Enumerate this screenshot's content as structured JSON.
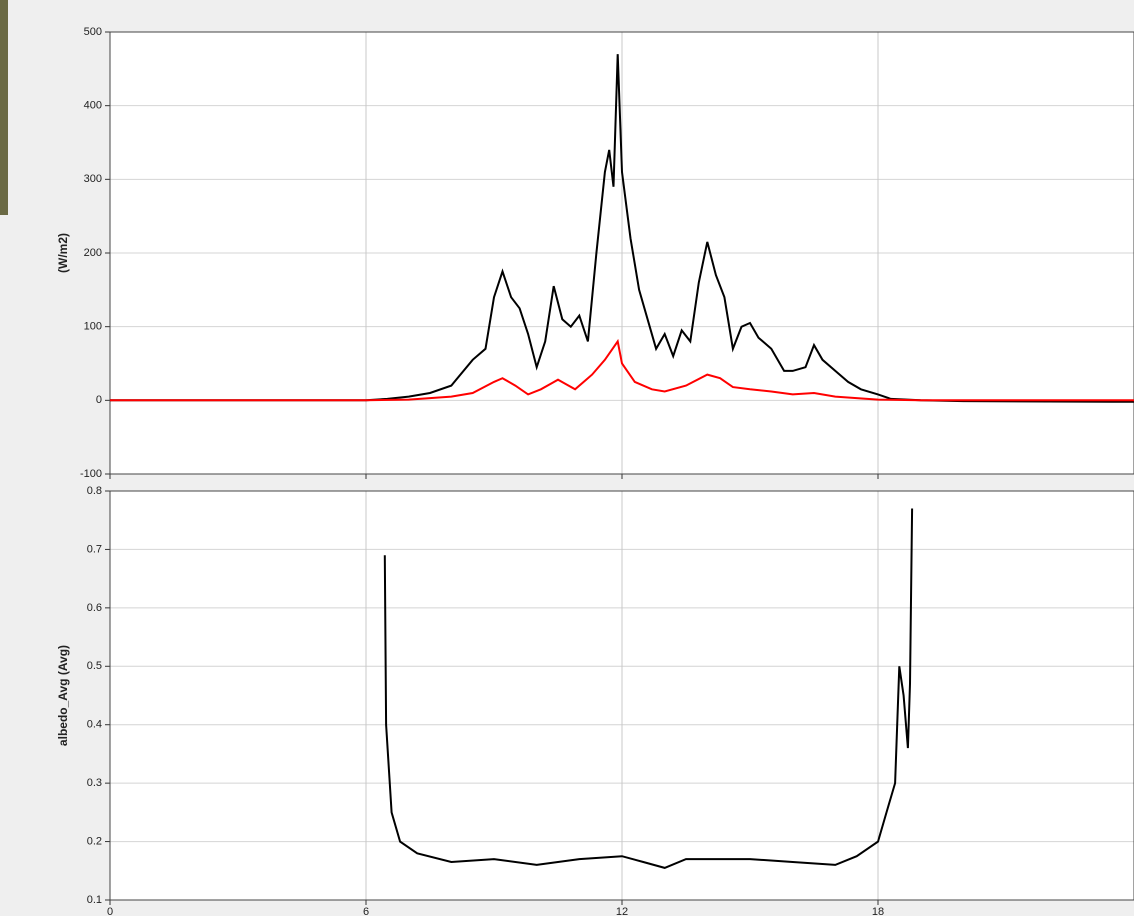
{
  "chart_data": [
    {
      "type": "line",
      "y_label": "(W/m2)",
      "xlim": [
        0,
        24
      ],
      "xticks": [
        0,
        6,
        12,
        18
      ],
      "ylim": [
        -100,
        500
      ],
      "yticks": [
        -100,
        0,
        100,
        200,
        300,
        400,
        500
      ],
      "grid": true,
      "series": [
        {
          "color": "#000000",
          "x": [
            0,
            6,
            6.5,
            7,
            7.5,
            8,
            8.5,
            8.8,
            9,
            9.2,
            9.4,
            9.6,
            9.8,
            10,
            10.2,
            10.4,
            10.6,
            10.8,
            11,
            11.2,
            11.4,
            11.6,
            11.7,
            11.8,
            11.9,
            12,
            12.2,
            12.4,
            12.6,
            12.8,
            13,
            13.2,
            13.4,
            13.6,
            13.8,
            14,
            14.2,
            14.4,
            14.6,
            14.8,
            15,
            15.2,
            15.5,
            15.8,
            16,
            16.3,
            16.5,
            16.7,
            17,
            17.3,
            17.6,
            18,
            18.3,
            19,
            20,
            23.5,
            24
          ],
          "values": [
            0,
            0,
            2,
            5,
            10,
            20,
            55,
            70,
            140,
            175,
            140,
            125,
            90,
            45,
            80,
            155,
            110,
            100,
            115,
            80,
            200,
            310,
            340,
            290,
            470,
            310,
            220,
            150,
            110,
            70,
            90,
            60,
            95,
            80,
            160,
            215,
            170,
            140,
            70,
            100,
            105,
            85,
            70,
            40,
            40,
            45,
            75,
            55,
            40,
            25,
            15,
            8,
            2,
            0,
            -1,
            -2,
            -2
          ]
        },
        {
          "color": "#ff0000",
          "x": [
            0,
            6,
            7,
            8,
            8.5,
            9,
            9.2,
            9.5,
            9.8,
            10.1,
            10.5,
            10.9,
            11.3,
            11.6,
            11.9,
            12,
            12.3,
            12.7,
            13,
            13.5,
            14,
            14.3,
            14.6,
            15,
            15.5,
            16,
            16.5,
            17,
            18,
            19,
            24
          ],
          "values": [
            0,
            0,
            1,
            5,
            10,
            25,
            30,
            20,
            8,
            15,
            28,
            15,
            35,
            55,
            80,
            50,
            25,
            15,
            12,
            20,
            35,
            30,
            18,
            15,
            12,
            8,
            10,
            5,
            1,
            0,
            0
          ]
        }
      ]
    },
    {
      "type": "line",
      "y_label": "albedo_Avg (Avg)",
      "xlim": [
        0,
        24
      ],
      "xticks": [
        0,
        6,
        12,
        18
      ],
      "ylim": [
        0.1,
        0.8
      ],
      "yticks": [
        0.1,
        0.2,
        0.3,
        0.4,
        0.5,
        0.6,
        0.7,
        0.8
      ],
      "grid": true,
      "series": [
        {
          "color": "#000000",
          "x": [
            6.44,
            6.47,
            6.6,
            6.8,
            7.2,
            8,
            9,
            10,
            11,
            12,
            12.5,
            13,
            13.5,
            14,
            15,
            16,
            17,
            17.5,
            18,
            18.2,
            18.4,
            18.5,
            18.6,
            18.7,
            18.75,
            18.8
          ],
          "values": [
            0.69,
            0.4,
            0.25,
            0.2,
            0.18,
            0.165,
            0.17,
            0.16,
            0.17,
            0.175,
            0.165,
            0.155,
            0.17,
            0.17,
            0.17,
            0.165,
            0.16,
            0.175,
            0.2,
            0.25,
            0.3,
            0.5,
            0.45,
            0.36,
            0.47,
            0.77
          ]
        }
      ]
    }
  ]
}
